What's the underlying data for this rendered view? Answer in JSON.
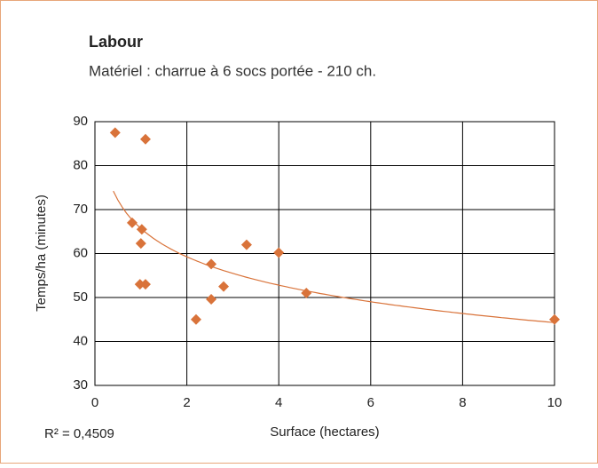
{
  "chart_data": {
    "type": "scatter",
    "title": "Labour",
    "subtitle": "Matériel : charrue à 6 socs portée - 210 ch.",
    "x_label": "Surface (hectares)",
    "y_label": "Temps/ha (minutes)",
    "annotation": "R² = 0,4509",
    "series": [
      {
        "color": "#d9733a",
        "x": [
          0.44,
          1.1,
          0.81,
          1.02,
          1.0,
          0.98,
          1.1,
          2.2,
          2.53,
          2.53,
          2.8,
          3.3,
          4.0,
          4.6,
          10
        ],
        "values": [
          87.5,
          86,
          67,
          65.5,
          62.3,
          53,
          53,
          45,
          57.6,
          49.6,
          52.5,
          62,
          60.2,
          51,
          45
        ]
      }
    ],
    "trendline": {
      "kind": "log",
      "color": "#d9733a",
      "intercept": 65.7,
      "slope": -9.3,
      "x": [
        0.4,
        10
      ]
    },
    "xlim": [
      0,
      10
    ],
    "xticks": [
      0,
      2,
      4,
      6,
      8,
      10
    ],
    "ylim": [
      30,
      90
    ],
    "yticks": [
      30,
      40,
      50,
      60,
      70,
      80,
      90
    ],
    "grid": true
  }
}
